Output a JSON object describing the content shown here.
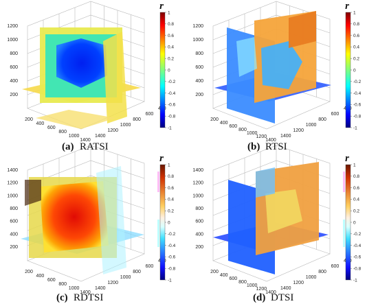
{
  "colorbar": {
    "label": "r",
    "ticks": [
      "1",
      "0.8",
      "0.6",
      "0.4",
      "0.2",
      "0",
      "-0.2",
      "-0.4",
      "-0.6",
      "-0.8",
      "-1"
    ],
    "range": [
      -1,
      1
    ],
    "colormap": "jet"
  },
  "chart_data": [
    {
      "type": "heatmap",
      "caption_letter": "(a)",
      "caption_name": "RATSI",
      "colorbar_label": "r",
      "colorbar_range": [
        -1,
        1
      ],
      "z_ticks": [
        "200",
        "400",
        "600",
        "800",
        "1000",
        "1200"
      ],
      "x_ticks": [
        "200",
        "400",
        "600",
        "800",
        "1000",
        "1400"
      ],
      "y_ticks": [
        "1400",
        "1200",
        "1000",
        "800",
        "600",
        "400"
      ]
    },
    {
      "type": "heatmap",
      "caption_letter": "(b)",
      "caption_name": "RTSI",
      "colorbar_label": "r",
      "colorbar_range": [
        -1,
        1
      ],
      "z_ticks": [
        "200",
        "400",
        "600",
        "800",
        "1000",
        "1200"
      ],
      "x_ticks": [
        "200",
        "400",
        "600",
        "800",
        "1000",
        "1200",
        "1400"
      ],
      "y_ticks": [
        "1400",
        "1200",
        "1000",
        "800",
        "600",
        "400"
      ]
    },
    {
      "type": "heatmap",
      "caption_letter": "(c)",
      "caption_name": "RDTSI",
      "colorbar_label": "r",
      "colorbar_range": [
        -1,
        1
      ],
      "z_ticks": [
        "200",
        "400",
        "600",
        "800",
        "1000",
        "1200",
        "1400"
      ],
      "x_ticks": [
        "200",
        "400",
        "600",
        "800",
        "1000",
        "1400"
      ],
      "y_ticks": [
        "1400",
        "1200",
        "1000",
        "800",
        "600",
        "400"
      ]
    },
    {
      "type": "heatmap",
      "caption_letter": "(d)",
      "caption_name": "DTSI",
      "colorbar_label": "r",
      "colorbar_range": [
        -1,
        1
      ],
      "z_ticks": [
        "200",
        "400",
        "600",
        "800",
        "1000",
        "1200",
        "1400"
      ],
      "x_ticks": [
        "200",
        "400",
        "600",
        "800",
        "1000",
        "1200",
        "1400"
      ],
      "y_ticks": [
        "1400",
        "1200",
        "1000",
        "800",
        "600",
        "400"
      ]
    }
  ]
}
